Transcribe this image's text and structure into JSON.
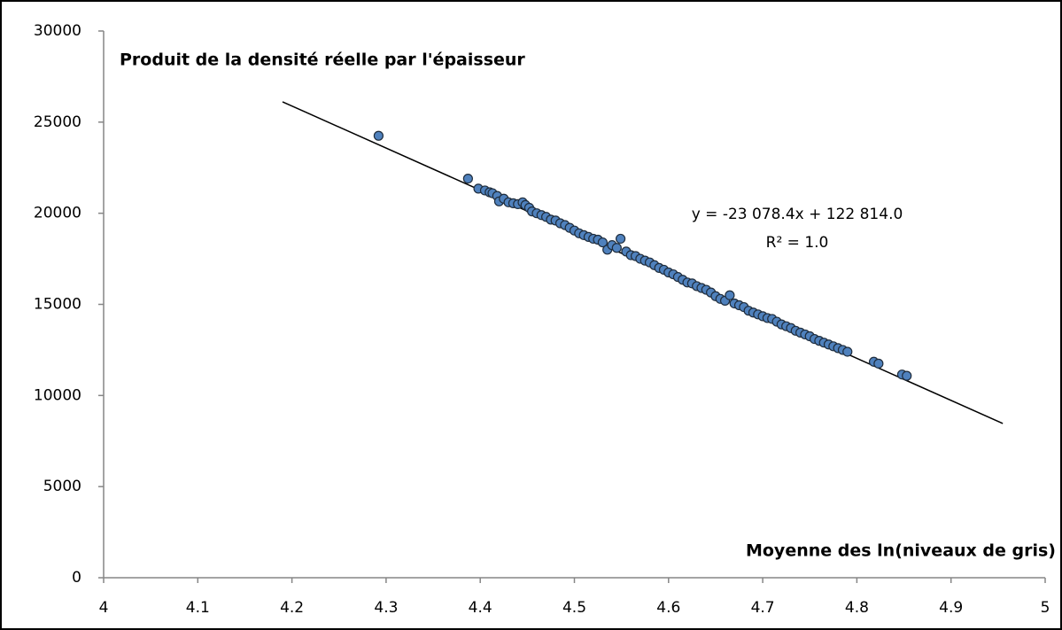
{
  "chart_data": {
    "type": "scatter",
    "y_axis_label": "Produit de la densité réelle par l'épaisseur",
    "x_axis_label": "Moyenne des ln(niveaux de gris)",
    "annotations": [
      "y = -23 078.4x + 122 814.0",
      "R² = 1.0"
    ],
    "color": "#4f81bd",
    "trendline": {
      "slope": -23078.4,
      "intercept": 122814.0,
      "xrange": [
        4.19,
        4.955
      ],
      "color": "#000000"
    },
    "x": [
      4.292,
      4.387,
      4.398,
      4.405,
      4.41,
      4.413,
      4.418,
      4.42,
      4.425,
      4.43,
      4.435,
      4.44,
      4.445,
      4.448,
      4.452,
      4.455,
      4.46,
      4.465,
      4.47,
      4.475,
      4.48,
      4.485,
      4.49,
      4.495,
      4.5,
      4.505,
      4.51,
      4.515,
      4.52,
      4.525,
      4.53,
      4.535,
      4.54,
      4.545,
      4.549,
      4.555,
      4.56,
      4.565,
      4.57,
      4.575,
      4.58,
      4.585,
      4.59,
      4.595,
      4.6,
      4.605,
      4.61,
      4.615,
      4.62,
      4.625,
      4.63,
      4.635,
      4.64,
      4.645,
      4.65,
      4.655,
      4.66,
      4.665,
      4.67,
      4.675,
      4.68,
      4.685,
      4.69,
      4.695,
      4.7,
      4.705,
      4.71,
      4.715,
      4.72,
      4.725,
      4.73,
      4.735,
      4.74,
      4.745,
      4.75,
      4.755,
      4.76,
      4.765,
      4.77,
      4.775,
      4.78,
      4.785,
      4.79,
      4.818,
      4.823,
      4.848,
      4.853
    ],
    "values": [
      24250,
      21900,
      21350,
      21250,
      21150,
      21100,
      20950,
      20650,
      20800,
      20600,
      20550,
      20500,
      20600,
      20450,
      20300,
      20100,
      20000,
      19900,
      19800,
      19650,
      19600,
      19450,
      19350,
      19200,
      19050,
      18900,
      18800,
      18700,
      18600,
      18550,
      18400,
      18000,
      18250,
      18100,
      18600,
      17900,
      17700,
      17650,
      17500,
      17400,
      17300,
      17150,
      17000,
      16900,
      16750,
      16650,
      16500,
      16350,
      16200,
      16150,
      16000,
      15900,
      15800,
      15650,
      15450,
      15300,
      15200,
      15500,
      15050,
      14950,
      14850,
      14650,
      14550,
      14450,
      14350,
      14250,
      14200,
      14050,
      13900,
      13800,
      13700,
      13550,
      13450,
      13350,
      13250,
      13100,
      13000,
      12900,
      12800,
      12700,
      12600,
      12500,
      12400,
      11850,
      11750,
      11150,
      11080
    ],
    "xlim": [
      4,
      5
    ],
    "xticks": [
      4,
      4.1,
      4.2,
      4.3,
      4.4,
      4.5,
      4.6,
      4.7,
      4.8,
      4.9,
      5
    ],
    "ylim": [
      0,
      30000
    ],
    "yticks": [
      0,
      5000,
      10000,
      15000,
      20000,
      25000,
      30000
    ],
    "grid": false
  }
}
